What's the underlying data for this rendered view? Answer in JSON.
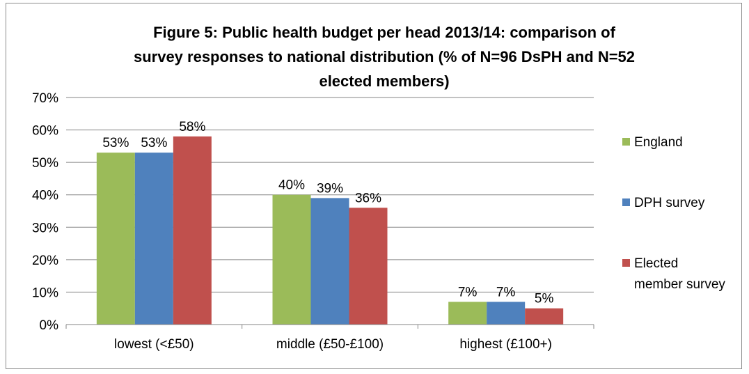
{
  "chart_data": {
    "type": "bar",
    "title_lines": [
      "Figure 5: Public health budget per head 2013/14: comparison of",
      "survey responses to national distribution (% of N=96 DsPH and N=52",
      "elected members)"
    ],
    "categories": [
      "lowest (<£50)",
      "middle (£50-£100)",
      "highest (£100+)"
    ],
    "series": [
      {
        "name": "England",
        "color": "#9BBB59",
        "values": [
          53,
          40,
          7
        ],
        "labels": [
          "53%",
          "40%",
          "7%"
        ]
      },
      {
        "name": "DPH survey",
        "color": "#4F81BD",
        "values": [
          53,
          39,
          7
        ],
        "labels": [
          "53%",
          "39%",
          "7%"
        ]
      },
      {
        "name": "Elected member survey",
        "legend_lines": [
          "Elected",
          "member survey"
        ],
        "color": "#C0504D",
        "values": [
          58,
          36,
          5
        ],
        "labels": [
          "58%",
          "36%",
          "5%"
        ]
      }
    ],
    "ylim": [
      0,
      70
    ],
    "yticks": [
      0,
      10,
      20,
      30,
      40,
      50,
      60,
      70
    ],
    "ytick_labels": [
      "0%",
      "10%",
      "20%",
      "30%",
      "40%",
      "50%",
      "60%",
      "70%"
    ],
    "grid": true,
    "legend_position": "right"
  }
}
